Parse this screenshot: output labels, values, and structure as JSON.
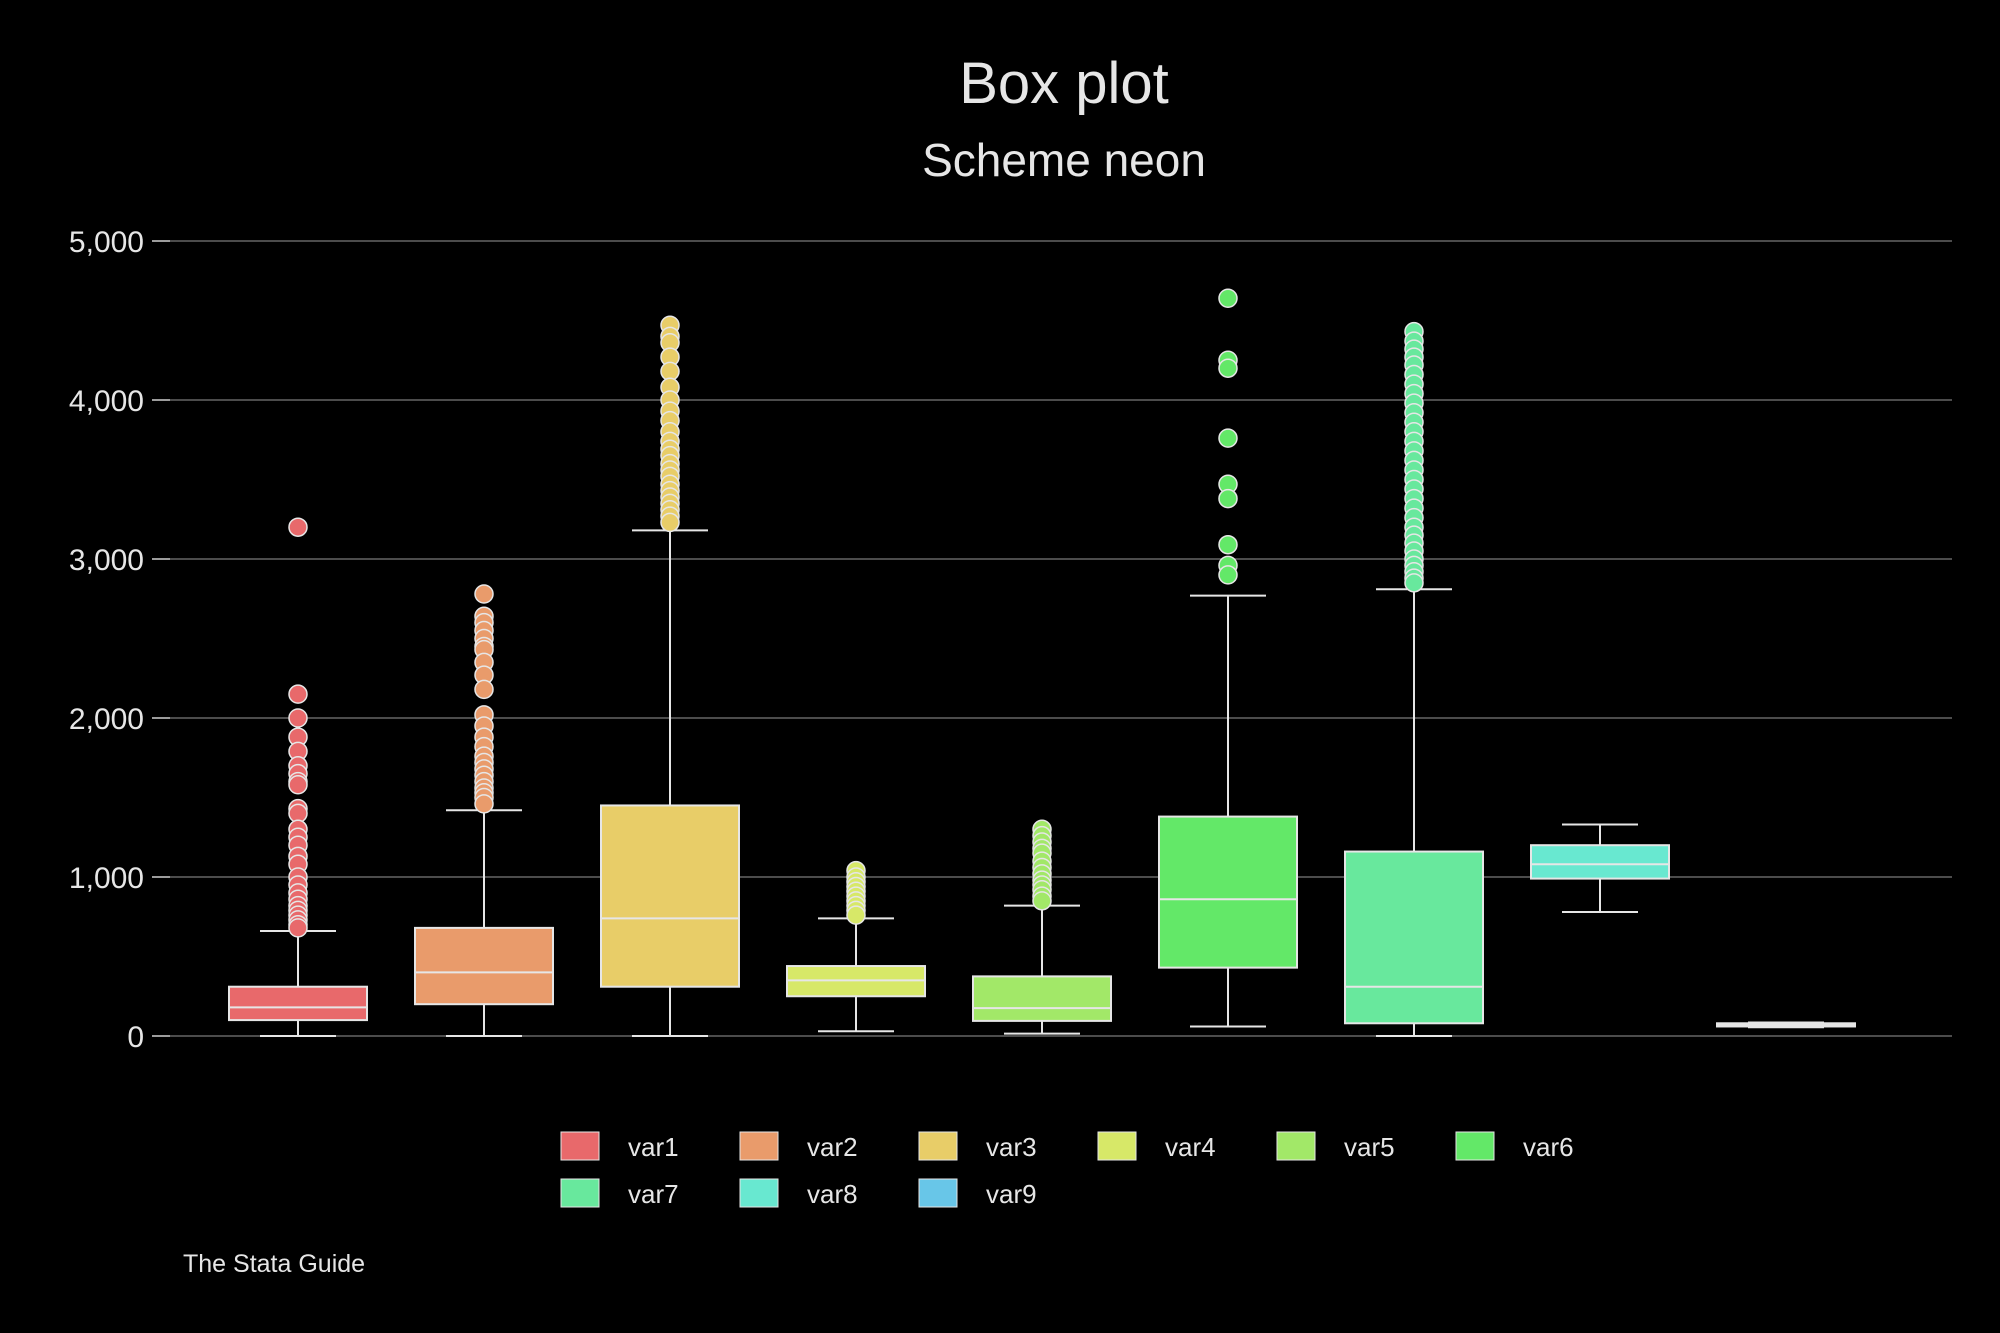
{
  "chart_data": {
    "type": "box",
    "title": "Box plot",
    "subtitle": "Scheme neon",
    "ylim": [
      0,
      5000
    ],
    "yticks": [
      0,
      1000,
      2000,
      3000,
      4000,
      5000
    ],
    "ytick_labels": [
      "0",
      "1,000",
      "2,000",
      "3,000",
      "4,000",
      "5,000"
    ],
    "grid": true,
    "legend_position": "bottom",
    "note": "The Stata Guide",
    "series": [
      {
        "name": "var1",
        "color": "#e8696b",
        "whisker_low": 0,
        "q1": 100,
        "median": 180,
        "q3": 310,
        "whisker_high": 660,
        "outliers": [
          3200,
          2150,
          2000,
          1880,
          1790,
          1700,
          1650,
          1600,
          1580,
          1430,
          1400,
          1300,
          1250,
          1200,
          1130,
          1080,
          1000,
          950,
          900,
          860,
          820,
          790,
          760,
          730,
          700,
          680
        ]
      },
      {
        "name": "var2",
        "color": "#e99b6b",
        "whisker_low": 0,
        "q1": 200,
        "median": 400,
        "q3": 680,
        "whisker_high": 1420,
        "outliers": [
          2780,
          2640,
          2600,
          2550,
          2500,
          2450,
          2430,
          2350,
          2270,
          2180,
          2020,
          1950,
          1880,
          1820,
          1760,
          1720,
          1680,
          1640,
          1600,
          1560,
          1530,
          1500,
          1460
        ]
      },
      {
        "name": "var3",
        "color": "#e8cd68",
        "whisker_low": 0,
        "q1": 310,
        "median": 740,
        "q3": 1450,
        "whisker_high": 3180,
        "outliers": [
          4470,
          4400,
          4360,
          4270,
          4180,
          4080,
          4000,
          3930,
          3870,
          3800,
          3740,
          3690,
          3650,
          3600,
          3560,
          3520,
          3470,
          3430,
          3390,
          3350,
          3310,
          3270,
          3230
        ]
      },
      {
        "name": "var4",
        "color": "#d7e868",
        "whisker_low": 30,
        "q1": 250,
        "median": 350,
        "q3": 440,
        "whisker_high": 740,
        "outliers": [
          1040,
          1000,
          970,
          940,
          910,
          880,
          850,
          820,
          790,
          760
        ]
      },
      {
        "name": "var5",
        "color": "#a2e868",
        "whisker_low": 15,
        "q1": 95,
        "median": 175,
        "q3": 375,
        "whisker_high": 820,
        "outliers": [
          1300,
          1260,
          1220,
          1180,
          1150,
          1100,
          1060,
          1020,
          980,
          950,
          920,
          880,
          850
        ]
      },
      {
        "name": "var6",
        "color": "#63e868",
        "whisker_low": 60,
        "q1": 430,
        "median": 860,
        "q3": 1380,
        "whisker_high": 2770,
        "outliers": [
          4640,
          4250,
          4200,
          3760,
          3470,
          3380,
          3090,
          2960,
          2900
        ]
      },
      {
        "name": "var7",
        "color": "#68e89d",
        "whisker_low": 0,
        "q1": 80,
        "median": 310,
        "q3": 1160,
        "whisker_high": 2810,
        "outliers": [
          4430,
          4370,
          4320,
          4270,
          4220,
          4160,
          4100,
          4040,
          3980,
          3920,
          3860,
          3800,
          3740,
          3680,
          3620,
          3560,
          3500,
          3440,
          3380,
          3320,
          3260,
          3200,
          3150,
          3100,
          3050,
          3000,
          2960,
          2920,
          2880,
          2850
        ]
      },
      {
        "name": "var8",
        "color": "#68e8d0",
        "whisker_low": 780,
        "q1": 990,
        "median": 1080,
        "q3": 1200,
        "whisker_high": 1330,
        "outliers": []
      },
      {
        "name": "var9",
        "color": "#68c6e8",
        "whisker_low": 55,
        "q1": 60,
        "median": 70,
        "q3": 80,
        "whisker_high": 85,
        "outliers": []
      }
    ]
  }
}
